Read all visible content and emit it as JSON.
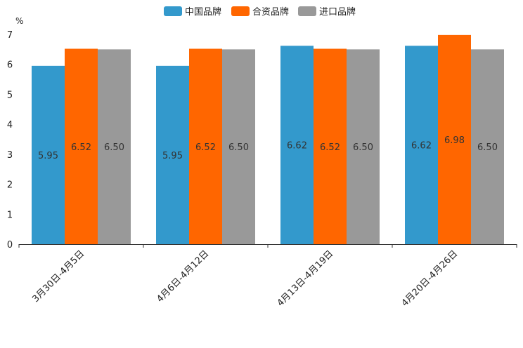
{
  "chart_data": {
    "type": "bar",
    "title": "",
    "ylabel": "%",
    "xlabel": "",
    "ylim": [
      0,
      7
    ],
    "yticks": [
      0,
      1,
      2,
      3,
      4,
      5,
      6,
      7
    ],
    "categories": [
      "3月30日-4月5日",
      "4月6日-4月12日",
      "4月13日-4月19日",
      "4月20日-4月26日"
    ],
    "series": [
      {
        "name": "中国品牌",
        "color": "#3399cc",
        "values": [
          5.95,
          5.95,
          6.62,
          6.62
        ],
        "labels": [
          "5.95",
          "5.95",
          "6.62",
          "6.62"
        ]
      },
      {
        "name": "合资品牌",
        "color": "#ff6600",
        "values": [
          6.52,
          6.52,
          6.52,
          6.98
        ],
        "labels": [
          "6.52",
          "6.52",
          "6.52",
          "6.98"
        ]
      },
      {
        "name": "进口品牌",
        "color": "#999999",
        "values": [
          6.5,
          6.5,
          6.5,
          6.5
        ],
        "labels": [
          "6.50",
          "6.50",
          "6.50",
          "6.50"
        ]
      }
    ],
    "legend_position": "top-center"
  }
}
